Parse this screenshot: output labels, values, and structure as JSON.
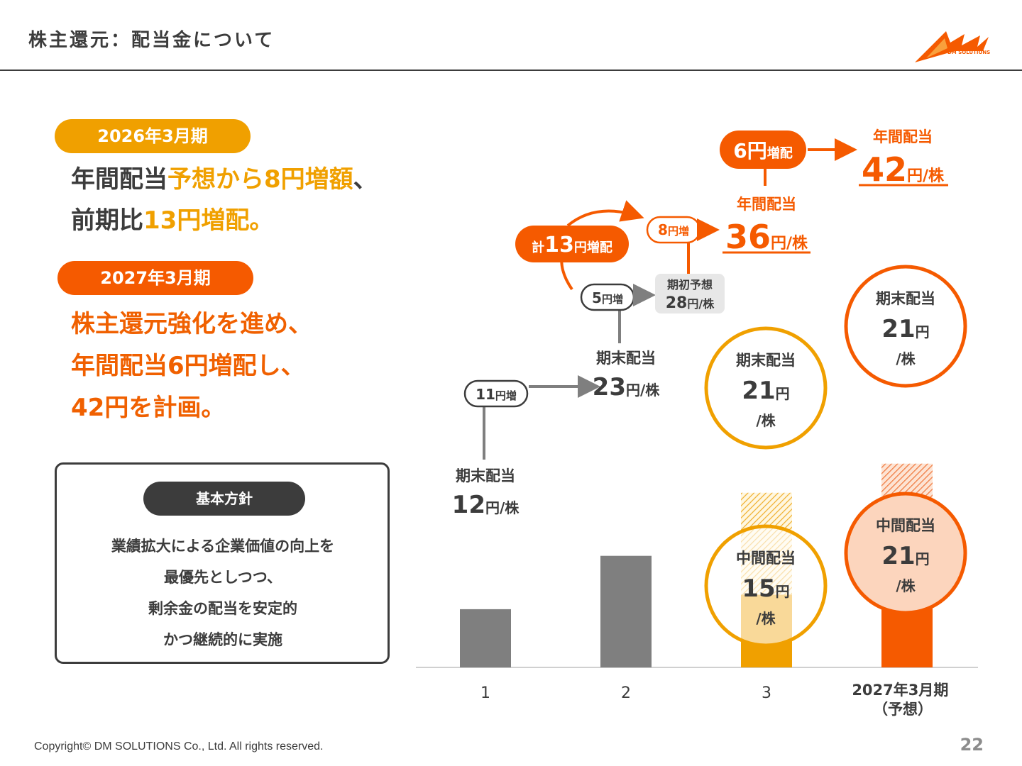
{
  "header": {
    "title": "株主還元：配当金について",
    "logo_text": "DM SOLUTIONS"
  },
  "left": {
    "fy2026_label": "2026年3月期",
    "fy2026_line1_a": "年間配当",
    "fy2026_line1_b": "予想から8円増額",
    "fy2026_line1_c": "、",
    "fy2026_line2_a": "前期比",
    "fy2026_line2_b": "13円増配。",
    "fy2027_label": "2027年3月期",
    "fy2027_lines": [
      "株主還元強化を進め、",
      "年間配当6円増配し、",
      "42円を計画。"
    ],
    "policy_title": "基本方針",
    "policy_lines": [
      "業績拡大による企業価値の向上を",
      "最優先としつつ、",
      "剰余金の配当を安定的",
      "かつ継続的に実施"
    ]
  },
  "chart_data": {
    "type": "bar",
    "categories": [
      "1",
      "2",
      "3",
      "2027年3月期\n（予想）"
    ],
    "unit": "円/株",
    "series": [
      {
        "name": "中間配当",
        "values": [
          0,
          0,
          15,
          21
        ]
      },
      {
        "name": "期末配当",
        "values": [
          12,
          23,
          21,
          21
        ]
      }
    ],
    "annotations": {
      "bar1": {
        "label": "期末配当",
        "value": "12",
        "unit": "円/株"
      },
      "bar2": {
        "label": "期末配当",
        "value": "23",
        "unit": "円/株"
      },
      "bar3_top": {
        "label": "期末配当",
        "value": "21",
        "unit1": "円",
        "unit2": "/株"
      },
      "bar3_bottom": {
        "label": "中間配当",
        "value": "15",
        "unit1": "円",
        "unit2": "/株"
      },
      "bar3_total": {
        "label": "年間配当",
        "value": "36",
        "unit": "円/株"
      },
      "bar4_top": {
        "label": "期末配当",
        "value": "21",
        "unit1": "円",
        "unit2": "/株"
      },
      "bar4_bottom": {
        "label": "中間配当",
        "value": "21",
        "unit1": "円",
        "unit2": "/株"
      },
      "bar4_total": {
        "label": "年間配当",
        "value": "42",
        "unit": "円/株"
      },
      "inc_11": {
        "value": "11",
        "unit": "円増"
      },
      "inc_5": {
        "value": "5",
        "unit": "円増"
      },
      "inc_8": {
        "value": "8",
        "unit": "円増"
      },
      "inc_6": {
        "value": "6円",
        "unit": "増配"
      },
      "total_13": {
        "prefix": "計",
        "value": "13",
        "unit": "円増配"
      },
      "initial_forecast": {
        "label": "期初予想",
        "value": "28",
        "unit": "円/株"
      }
    },
    "colors": {
      "gray": "#7f7f7f",
      "yellow": "#f0a000",
      "yellow_light": "#fde9c0",
      "orange": "#f55a00",
      "orange_light": "#fcd5bd"
    },
    "ylim": [
      0,
      60
    ]
  },
  "footer": {
    "copyright": "Copyright© DM SOLUTIONS Co., Ltd. All rights reserved.",
    "page": "22"
  }
}
